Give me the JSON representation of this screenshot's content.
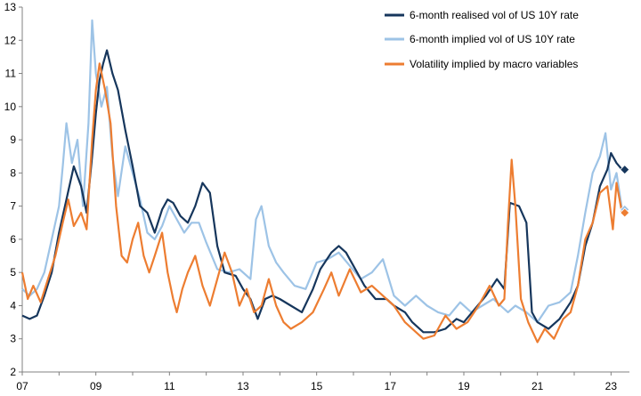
{
  "chart_data": {
    "type": "line",
    "xlim": [
      2007.0,
      2023.5
    ],
    "ylim": [
      2,
      13
    ],
    "y_ticks": [
      2,
      3,
      4,
      5,
      6,
      7,
      8,
      9,
      10,
      11,
      12,
      13
    ],
    "x_ticks": [
      {
        "value": 2007,
        "label": "07"
      },
      {
        "value": 2009,
        "label": "09"
      },
      {
        "value": 2011,
        "label": "11"
      },
      {
        "value": 2013,
        "label": "13"
      },
      {
        "value": 2015,
        "label": "15"
      },
      {
        "value": 2017,
        "label": "17"
      },
      {
        "value": 2019,
        "label": "19"
      },
      {
        "value": 2021,
        "label": "21"
      },
      {
        "value": 2023,
        "label": "23"
      }
    ],
    "grid": false,
    "legend_position": "top-right",
    "series": [
      {
        "name": "6-month realised vol of US 10Y rate",
        "color": "#16365c",
        "marker_last": "diamond",
        "points": [
          [
            2007.0,
            3.7
          ],
          [
            2007.2,
            3.6
          ],
          [
            2007.4,
            3.7
          ],
          [
            2007.6,
            4.3
          ],
          [
            2007.8,
            5.0
          ],
          [
            2008.0,
            6.2
          ],
          [
            2008.2,
            7.2
          ],
          [
            2008.4,
            8.2
          ],
          [
            2008.6,
            7.6
          ],
          [
            2008.75,
            6.8
          ],
          [
            2008.9,
            8.5
          ],
          [
            2009.0,
            9.8
          ],
          [
            2009.1,
            10.8
          ],
          [
            2009.2,
            11.3
          ],
          [
            2009.3,
            11.7
          ],
          [
            2009.45,
            11.0
          ],
          [
            2009.6,
            10.5
          ],
          [
            2009.8,
            9.3
          ],
          [
            2010.0,
            8.2
          ],
          [
            2010.2,
            7.0
          ],
          [
            2010.4,
            6.8
          ],
          [
            2010.6,
            6.2
          ],
          [
            2010.8,
            6.9
          ],
          [
            2010.95,
            7.2
          ],
          [
            2011.1,
            7.1
          ],
          [
            2011.3,
            6.7
          ],
          [
            2011.5,
            6.5
          ],
          [
            2011.7,
            7.0
          ],
          [
            2011.9,
            7.7
          ],
          [
            2012.1,
            7.4
          ],
          [
            2012.3,
            5.8
          ],
          [
            2012.5,
            5.0
          ],
          [
            2012.8,
            4.9
          ],
          [
            2013.0,
            4.5
          ],
          [
            2013.2,
            4.2
          ],
          [
            2013.4,
            3.6
          ],
          [
            2013.6,
            4.2
          ],
          [
            2013.8,
            4.3
          ],
          [
            2014.0,
            4.2
          ],
          [
            2014.3,
            4.0
          ],
          [
            2014.6,
            3.8
          ],
          [
            2014.9,
            4.5
          ],
          [
            2015.1,
            5.1
          ],
          [
            2015.4,
            5.6
          ],
          [
            2015.6,
            5.8
          ],
          [
            2015.8,
            5.6
          ],
          [
            2016.0,
            5.2
          ],
          [
            2016.3,
            4.6
          ],
          [
            2016.6,
            4.2
          ],
          [
            2016.9,
            4.2
          ],
          [
            2017.1,
            4.0
          ],
          [
            2017.4,
            3.8
          ],
          [
            2017.6,
            3.5
          ],
          [
            2017.9,
            3.2
          ],
          [
            2018.2,
            3.2
          ],
          [
            2018.5,
            3.3
          ],
          [
            2018.8,
            3.6
          ],
          [
            2019.0,
            3.5
          ],
          [
            2019.3,
            3.9
          ],
          [
            2019.6,
            4.3
          ],
          [
            2019.9,
            4.8
          ],
          [
            2020.1,
            4.5
          ],
          [
            2020.25,
            7.1
          ],
          [
            2020.5,
            7.0
          ],
          [
            2020.7,
            6.5
          ],
          [
            2020.85,
            3.8
          ],
          [
            2021.0,
            3.5
          ],
          [
            2021.3,
            3.3
          ],
          [
            2021.6,
            3.6
          ],
          [
            2021.9,
            4.1
          ],
          [
            2022.1,
            4.6
          ],
          [
            2022.3,
            5.8
          ],
          [
            2022.5,
            6.5
          ],
          [
            2022.7,
            7.6
          ],
          [
            2022.9,
            8.1
          ],
          [
            2023.0,
            8.6
          ],
          [
            2023.15,
            8.3
          ],
          [
            2023.3,
            8.1
          ]
        ]
      },
      {
        "name": "6-month implied vol of US 10Y rate",
        "color": "#9dc3e6",
        "marker_last": "diamond",
        "points": [
          [
            2007.0,
            4.5
          ],
          [
            2007.2,
            4.3
          ],
          [
            2007.4,
            4.5
          ],
          [
            2007.6,
            5.0
          ],
          [
            2007.8,
            6.0
          ],
          [
            2008.0,
            7.0
          ],
          [
            2008.1,
            8.2
          ],
          [
            2008.2,
            9.5
          ],
          [
            2008.35,
            8.3
          ],
          [
            2008.5,
            9.0
          ],
          [
            2008.65,
            7.0
          ],
          [
            2008.8,
            9.5
          ],
          [
            2008.9,
            12.6
          ],
          [
            2009.0,
            11.0
          ],
          [
            2009.15,
            10.0
          ],
          [
            2009.3,
            10.6
          ],
          [
            2009.45,
            8.5
          ],
          [
            2009.6,
            7.3
          ],
          [
            2009.8,
            8.8
          ],
          [
            2010.0,
            8.0
          ],
          [
            2010.2,
            7.2
          ],
          [
            2010.4,
            6.2
          ],
          [
            2010.6,
            6.0
          ],
          [
            2010.8,
            6.4
          ],
          [
            2011.0,
            7.0
          ],
          [
            2011.2,
            6.6
          ],
          [
            2011.4,
            6.2
          ],
          [
            2011.6,
            6.5
          ],
          [
            2011.8,
            6.5
          ],
          [
            2012.0,
            5.9
          ],
          [
            2012.3,
            5.1
          ],
          [
            2012.6,
            5.0
          ],
          [
            2012.9,
            5.1
          ],
          [
            2013.2,
            4.8
          ],
          [
            2013.35,
            6.6
          ],
          [
            2013.5,
            7.0
          ],
          [
            2013.7,
            5.8
          ],
          [
            2013.9,
            5.3
          ],
          [
            2014.1,
            5.0
          ],
          [
            2014.4,
            4.6
          ],
          [
            2014.7,
            4.5
          ],
          [
            2015.0,
            5.3
          ],
          [
            2015.3,
            5.4
          ],
          [
            2015.6,
            5.6
          ],
          [
            2015.9,
            5.2
          ],
          [
            2016.2,
            4.8
          ],
          [
            2016.5,
            5.0
          ],
          [
            2016.8,
            5.4
          ],
          [
            2017.1,
            4.3
          ],
          [
            2017.4,
            4.0
          ],
          [
            2017.7,
            4.3
          ],
          [
            2018.0,
            4.0
          ],
          [
            2018.3,
            3.8
          ],
          [
            2018.6,
            3.7
          ],
          [
            2018.9,
            4.1
          ],
          [
            2019.2,
            3.8
          ],
          [
            2019.5,
            4.0
          ],
          [
            2019.8,
            4.2
          ],
          [
            2020.0,
            4.0
          ],
          [
            2020.2,
            3.8
          ],
          [
            2020.4,
            4.0
          ],
          [
            2020.7,
            3.8
          ],
          [
            2021.0,
            3.5
          ],
          [
            2021.3,
            4.0
          ],
          [
            2021.6,
            4.1
          ],
          [
            2021.9,
            4.4
          ],
          [
            2022.1,
            5.5
          ],
          [
            2022.3,
            6.8
          ],
          [
            2022.5,
            8.0
          ],
          [
            2022.7,
            8.5
          ],
          [
            2022.85,
            9.2
          ],
          [
            2023.0,
            7.5
          ],
          [
            2023.15,
            8.0
          ],
          [
            2023.3,
            6.9
          ]
        ]
      },
      {
        "name": "Volatility implied by macro variables",
        "color": "#ed7d31",
        "marker_last": "diamond",
        "points": [
          [
            2007.0,
            5.0
          ],
          [
            2007.15,
            4.2
          ],
          [
            2007.3,
            4.6
          ],
          [
            2007.5,
            4.1
          ],
          [
            2007.7,
            4.8
          ],
          [
            2007.9,
            5.5
          ],
          [
            2008.1,
            6.5
          ],
          [
            2008.25,
            7.2
          ],
          [
            2008.4,
            6.4
          ],
          [
            2008.6,
            6.8
          ],
          [
            2008.75,
            6.3
          ],
          [
            2008.9,
            9.0
          ],
          [
            2009.0,
            10.5
          ],
          [
            2009.1,
            11.3
          ],
          [
            2009.25,
            10.5
          ],
          [
            2009.4,
            9.5
          ],
          [
            2009.55,
            7.0
          ],
          [
            2009.7,
            5.5
          ],
          [
            2009.85,
            5.3
          ],
          [
            2010.0,
            6.0
          ],
          [
            2010.15,
            6.5
          ],
          [
            2010.3,
            5.5
          ],
          [
            2010.45,
            5.0
          ],
          [
            2010.6,
            5.5
          ],
          [
            2010.8,
            6.2
          ],
          [
            2010.95,
            5.0
          ],
          [
            2011.1,
            4.2
          ],
          [
            2011.2,
            3.8
          ],
          [
            2011.35,
            4.5
          ],
          [
            2011.5,
            5.0
          ],
          [
            2011.7,
            5.5
          ],
          [
            2011.9,
            4.6
          ],
          [
            2012.1,
            4.0
          ],
          [
            2012.3,
            4.8
          ],
          [
            2012.5,
            5.6
          ],
          [
            2012.7,
            5.0
          ],
          [
            2012.9,
            4.0
          ],
          [
            2013.1,
            4.5
          ],
          [
            2013.3,
            3.8
          ],
          [
            2013.5,
            4.0
          ],
          [
            2013.7,
            4.8
          ],
          [
            2013.9,
            4.0
          ],
          [
            2014.1,
            3.5
          ],
          [
            2014.3,
            3.3
          ],
          [
            2014.6,
            3.5
          ],
          [
            2014.9,
            3.8
          ],
          [
            2015.2,
            4.5
          ],
          [
            2015.4,
            5.0
          ],
          [
            2015.6,
            4.3
          ],
          [
            2015.9,
            5.1
          ],
          [
            2016.2,
            4.4
          ],
          [
            2016.5,
            4.6
          ],
          [
            2016.8,
            4.3
          ],
          [
            2017.1,
            4.0
          ],
          [
            2017.4,
            3.5
          ],
          [
            2017.7,
            3.2
          ],
          [
            2017.9,
            3.0
          ],
          [
            2018.2,
            3.1
          ],
          [
            2018.5,
            3.7
          ],
          [
            2018.8,
            3.3
          ],
          [
            2019.1,
            3.5
          ],
          [
            2019.4,
            4.0
          ],
          [
            2019.7,
            4.6
          ],
          [
            2019.95,
            4.0
          ],
          [
            2020.1,
            4.2
          ],
          [
            2020.2,
            6.5
          ],
          [
            2020.3,
            8.4
          ],
          [
            2020.4,
            7.0
          ],
          [
            2020.55,
            4.2
          ],
          [
            2020.75,
            3.5
          ],
          [
            2021.0,
            2.9
          ],
          [
            2021.2,
            3.3
          ],
          [
            2021.45,
            3.0
          ],
          [
            2021.7,
            3.6
          ],
          [
            2021.9,
            3.8
          ],
          [
            2022.1,
            4.6
          ],
          [
            2022.3,
            6.0
          ],
          [
            2022.5,
            6.5
          ],
          [
            2022.7,
            7.4
          ],
          [
            2022.9,
            7.6
          ],
          [
            2023.05,
            6.3
          ],
          [
            2023.15,
            7.7
          ],
          [
            2023.3,
            6.8
          ]
        ]
      }
    ]
  }
}
